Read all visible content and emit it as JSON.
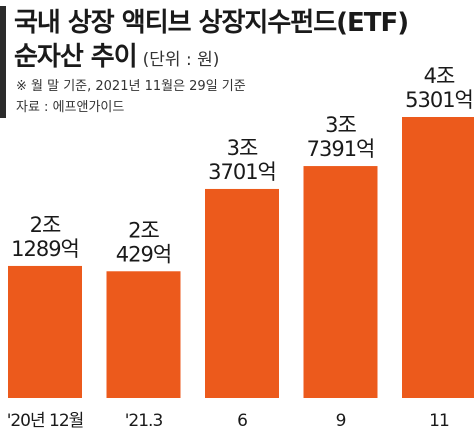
{
  "title_line1": "국내 상장 액티브 상장지수펀드(ETF)",
  "title_line2": "순자산 추이",
  "unit": "(단위 : 원)",
  "note": "※ 월 말 기준, 2021년 11월은 29일 기준",
  "source": "자료 : 에프앤가이드",
  "colors": {
    "bar": "#ec5a1c",
    "text": "#1a1a1a"
  },
  "chart_data": {
    "type": "bar",
    "title": "국내 상장 액티브 상장지수펀드(ETF) 순자산 추이",
    "ylabel": "",
    "xlabel": "",
    "unit": "원",
    "categories": [
      "'20년 12월",
      "'21.3",
      "6",
      "9",
      "11"
    ],
    "values": [
      21289,
      20429,
      33701,
      37391,
      45301
    ],
    "value_units": "억원",
    "data_labels": [
      [
        "2조",
        "1289억"
      ],
      [
        "2조",
        "429억"
      ],
      [
        "3조",
        "3701억"
      ],
      [
        "3조",
        "7391억"
      ],
      [
        "4조",
        "5301억"
      ]
    ],
    "ylim": [
      0,
      47000
    ],
    "grid": false,
    "legend": "none"
  }
}
